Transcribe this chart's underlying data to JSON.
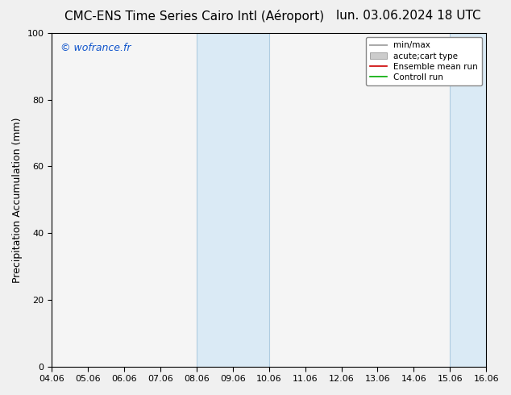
{
  "title_left": "CMC-ENS Time Series Cairo Intl (Aéroport)",
  "title_right": "lun. 03.06.2024 18 UTC",
  "ylabel": "Precipitation Accumulation (mm)",
  "ylim": [
    0,
    100
  ],
  "yticks": [
    0,
    20,
    40,
    60,
    80,
    100
  ],
  "x_labels": [
    "04.06",
    "05.06",
    "06.06",
    "07.06",
    "08.06",
    "09.06",
    "10.06",
    "11.06",
    "12.06",
    "13.06",
    "14.06",
    "15.06",
    "16.06"
  ],
  "xlim": [
    0,
    12
  ],
  "shaded_bands": [
    {
      "xmin": 4,
      "xmax": 6,
      "color": "#daeaf5"
    },
    {
      "xmin": 11,
      "xmax": 12.5,
      "color": "#daeaf5"
    }
  ],
  "shaded_band_edge": "#b0cce0",
  "watermark": "© wofrance.fr",
  "watermark_color": "#1155cc",
  "legend_items": [
    {
      "label": "min/max",
      "color": "#aaaaaa",
      "lw": 1.5,
      "ls": "-"
    },
    {
      "label": "acute;cart type",
      "color": "#cccccc",
      "lw": 5,
      "ls": "-"
    },
    {
      "label": "Ensemble mean run",
      "color": "#cc0000",
      "lw": 1.2,
      "ls": "-"
    },
    {
      "label": "Controll run",
      "color": "#00aa00",
      "lw": 1.2,
      "ls": "-"
    }
  ],
  "bg_color": "#f0f0f0",
  "plot_bg_color": "#f5f5f5",
  "title_fontsize": 11,
  "ylabel_fontsize": 9,
  "tick_fontsize": 8,
  "watermark_fontsize": 9,
  "legend_fontsize": 7.5
}
